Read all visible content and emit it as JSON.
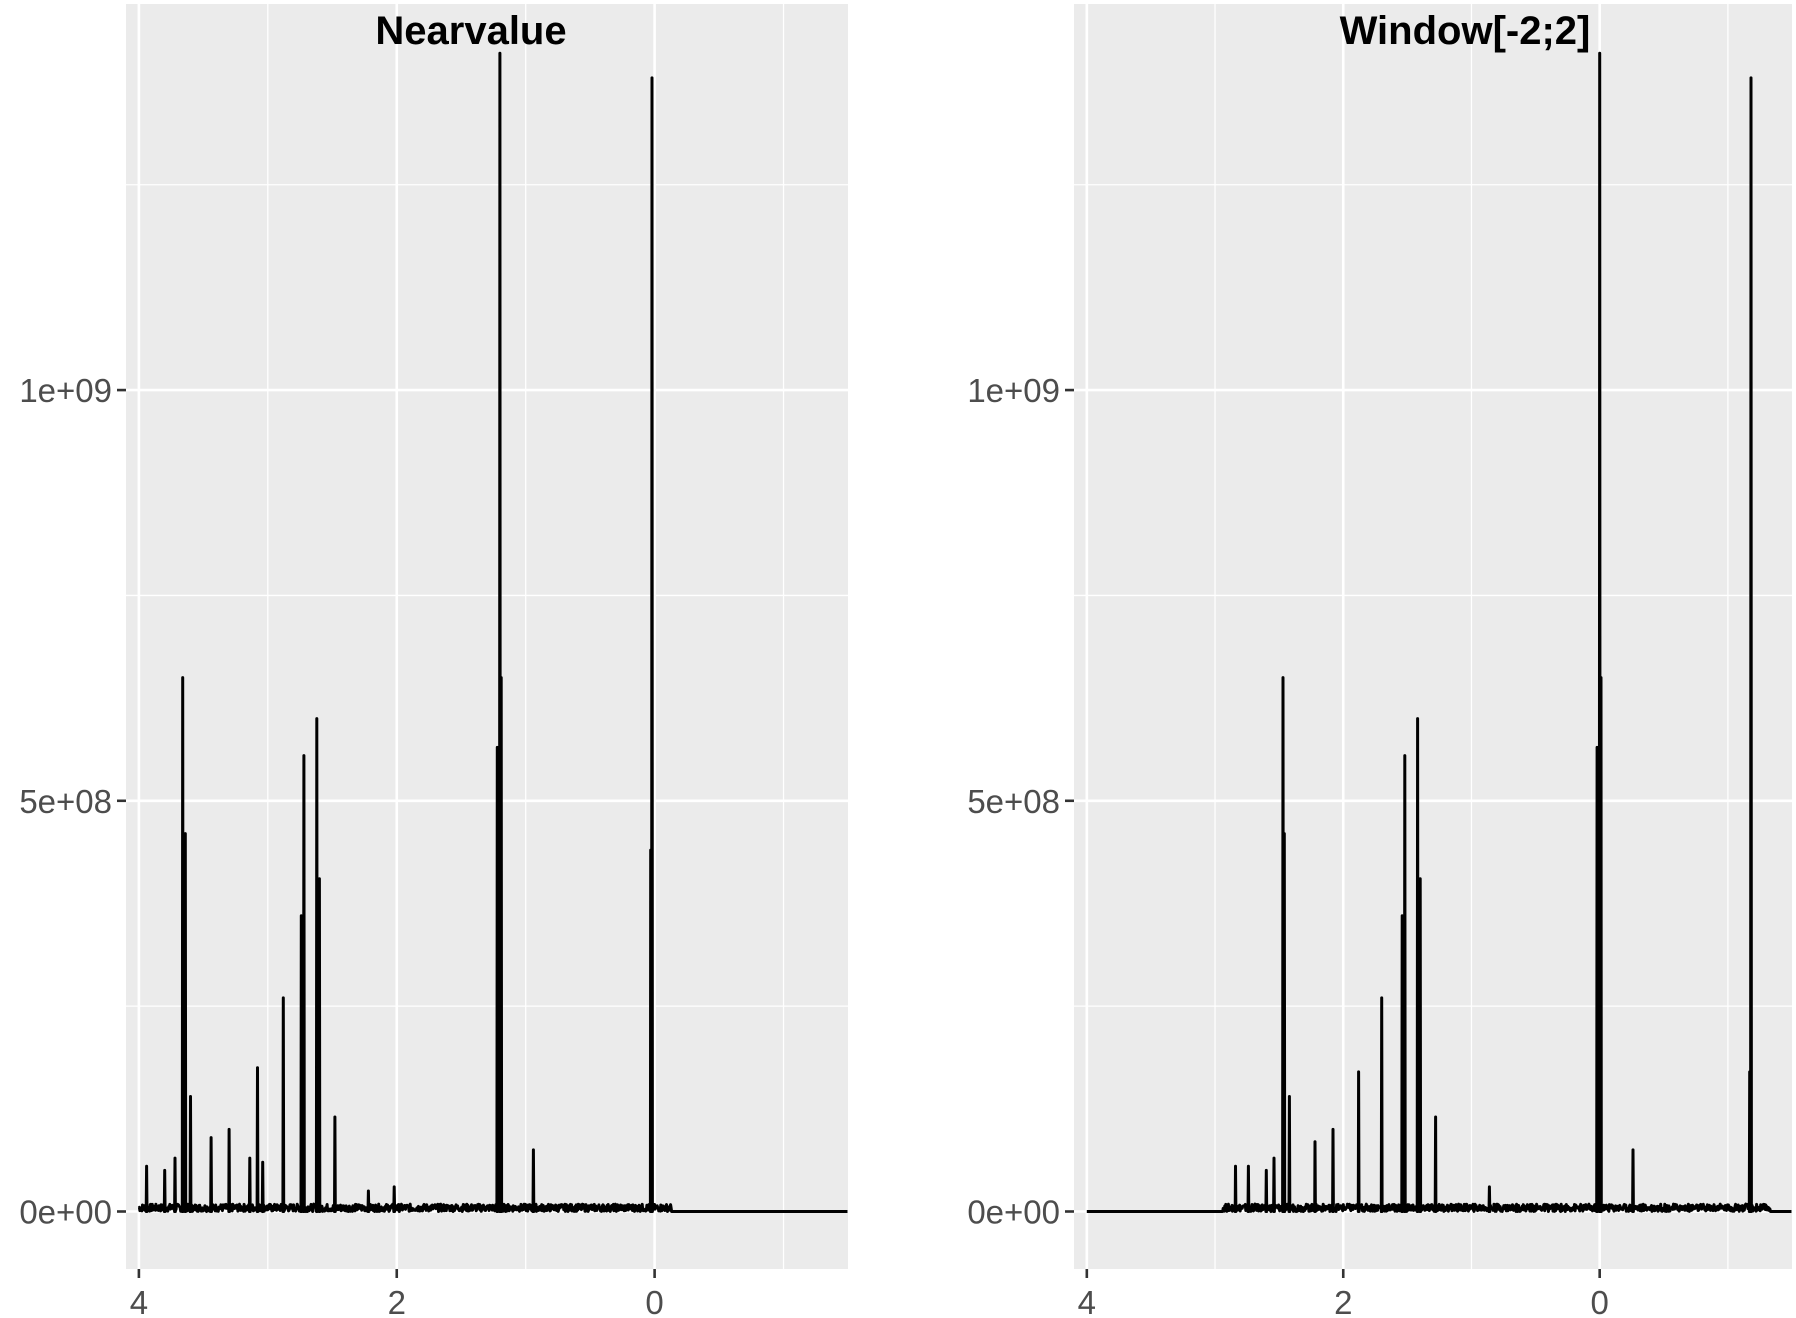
{
  "chart_data": [
    {
      "type": "line",
      "title": "Nearvalue",
      "xlabel": "",
      "ylabel": "",
      "x_reversed": true,
      "xlim": [
        -1.5,
        4.1
      ],
      "ylim": [
        -70000000,
        1470000000
      ],
      "x_ticks": [
        4,
        2,
        0
      ],
      "x_tick_labels": [
        "4",
        "2",
        "0"
      ],
      "y_ticks": [
        0,
        500000000,
        1000000000
      ],
      "y_tick_labels": [
        "0e+00",
        "5e+08",
        "1e+09"
      ],
      "grid": true,
      "peaks": [
        {
          "x": 3.94,
          "y": 55000000
        },
        {
          "x": 3.8,
          "y": 50000000
        },
        {
          "x": 3.72,
          "y": 65000000
        },
        {
          "x": 3.66,
          "y": 650000000
        },
        {
          "x": 3.64,
          "y": 460000000
        },
        {
          "x": 3.6,
          "y": 140000000
        },
        {
          "x": 3.44,
          "y": 90000000
        },
        {
          "x": 3.3,
          "y": 100000000
        },
        {
          "x": 3.14,
          "y": 65000000
        },
        {
          "x": 3.08,
          "y": 175000000
        },
        {
          "x": 3.04,
          "y": 60000000
        },
        {
          "x": 2.88,
          "y": 260000000
        },
        {
          "x": 2.74,
          "y": 360000000
        },
        {
          "x": 2.72,
          "y": 555000000
        },
        {
          "x": 2.62,
          "y": 600000000
        },
        {
          "x": 2.6,
          "y": 405000000
        },
        {
          "x": 2.48,
          "y": 115000000
        },
        {
          "x": 2.22,
          "y": 25000000
        },
        {
          "x": 2.02,
          "y": 30000000
        },
        {
          "x": 1.22,
          "y": 565000000
        },
        {
          "x": 1.2,
          "y": 1410000000
        },
        {
          "x": 1.19,
          "y": 650000000
        },
        {
          "x": 0.94,
          "y": 75000000
        },
        {
          "x": 0.02,
          "y": 1380000000
        },
        {
          "x": 0.03,
          "y": 440000000
        }
      ],
      "baseline_x": [
        -1.5,
        4.0
      ]
    },
    {
      "type": "line",
      "title": "Window[-2;2]",
      "xlabel": "",
      "ylabel": "",
      "x_reversed": true,
      "xlim": [
        -1.5,
        4.1
      ],
      "ylim": [
        -70000000,
        1470000000
      ],
      "x_ticks": [
        4,
        2,
        0
      ],
      "x_tick_labels": [
        "4",
        "2",
        "0"
      ],
      "y_ticks": [
        0,
        500000000,
        1000000000
      ],
      "y_tick_labels": [
        "0e+00",
        "5e+08",
        "1e+09"
      ],
      "grid": true,
      "peaks": [
        {
          "x": 2.84,
          "y": 55000000
        },
        {
          "x": 2.74,
          "y": 55000000
        },
        {
          "x": 2.6,
          "y": 50000000
        },
        {
          "x": 2.54,
          "y": 65000000
        },
        {
          "x": 2.47,
          "y": 650000000
        },
        {
          "x": 2.46,
          "y": 460000000
        },
        {
          "x": 2.42,
          "y": 140000000
        },
        {
          "x": 2.22,
          "y": 85000000
        },
        {
          "x": 2.08,
          "y": 100000000
        },
        {
          "x": 1.88,
          "y": 170000000
        },
        {
          "x": 1.7,
          "y": 260000000
        },
        {
          "x": 1.54,
          "y": 360000000
        },
        {
          "x": 1.52,
          "y": 555000000
        },
        {
          "x": 1.42,
          "y": 600000000
        },
        {
          "x": 1.4,
          "y": 405000000
        },
        {
          "x": 1.28,
          "y": 115000000
        },
        {
          "x": 0.86,
          "y": 30000000
        },
        {
          "x": 0.02,
          "y": 565000000
        },
        {
          "x": 0.0,
          "y": 1410000000
        },
        {
          "x": -0.01,
          "y": 650000000
        },
        {
          "x": -0.26,
          "y": 75000000
        },
        {
          "x": -1.18,
          "y": 1380000000
        },
        {
          "x": -1.17,
          "y": 170000000
        }
      ],
      "baseline_x": [
        -1.5,
        4.0
      ]
    }
  ]
}
